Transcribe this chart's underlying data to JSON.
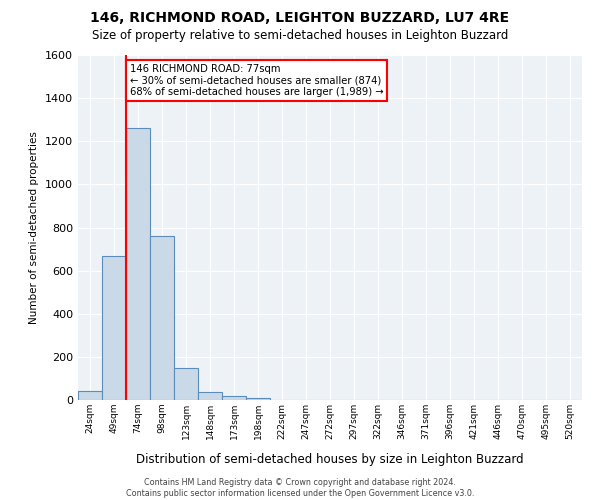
{
  "title1": "146, RICHMOND ROAD, LEIGHTON BUZZARD, LU7 4RE",
  "title2": "Size of property relative to semi-detached houses in Leighton Buzzard",
  "xlabel": "Distribution of semi-detached houses by size in Leighton Buzzard",
  "ylabel": "Number of semi-detached properties",
  "footnote": "Contains HM Land Registry data © Crown copyright and database right 2024.\nContains public sector information licensed under the Open Government Licence v3.0.",
  "bin_labels": [
    "24sqm",
    "49sqm",
    "74sqm",
    "98sqm",
    "123sqm",
    "148sqm",
    "173sqm",
    "198sqm",
    "222sqm",
    "247sqm",
    "272sqm",
    "297sqm",
    "322sqm",
    "346sqm",
    "371sqm",
    "396sqm",
    "421sqm",
    "446sqm",
    "470sqm",
    "495sqm",
    "520sqm"
  ],
  "bar_values": [
    40,
    670,
    1260,
    760,
    150,
    35,
    20,
    10,
    0,
    0,
    0,
    0,
    0,
    0,
    0,
    0,
    0,
    0,
    0,
    0,
    0
  ],
  "bar_color": "#c9d9e8",
  "bar_edge_color": "#5b8db8",
  "red_line_x": 2.0,
  "annotation_text": "146 RICHMOND ROAD: 77sqm\n← 30% of semi-detached houses are smaller (874)\n68% of semi-detached houses are larger (1,989) →",
  "ylim": [
    0,
    1600
  ],
  "yticks": [
    0,
    200,
    400,
    600,
    800,
    1000,
    1200,
    1400,
    1600
  ],
  "background_color": "#edf2f7"
}
